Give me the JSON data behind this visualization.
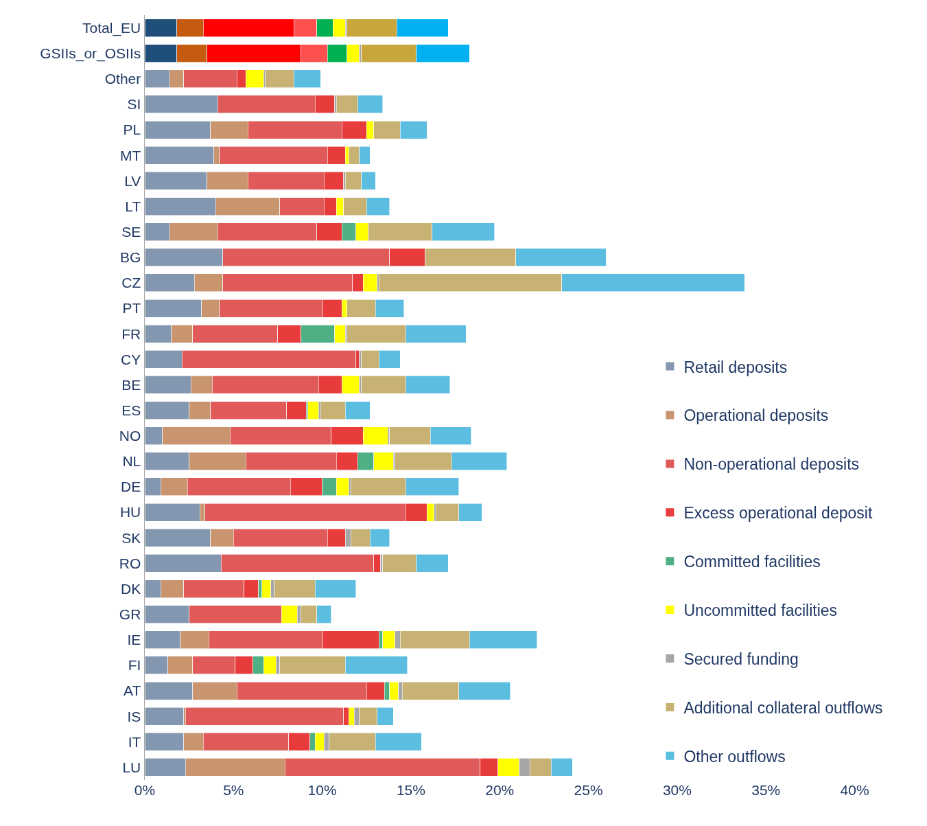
{
  "chart_data": {
    "type": "bar",
    "orientation": "horizontal",
    "stacked": true,
    "grid": false,
    "legend": "bottom right",
    "categories": [
      "Total_EU",
      "GSIIs_or_OSIIs",
      "Other",
      "SI",
      "PL",
      "MT",
      "LV",
      "LT",
      "SE",
      "BG",
      "CZ",
      "PT",
      "FR",
      "CY",
      "BE",
      "ES",
      "NO",
      "NL",
      "DE",
      "HU",
      "SK",
      "RO",
      "DK",
      "GR",
      "IE",
      "FI",
      "AT",
      "IS",
      "IT",
      "LU"
    ],
    "xlim": [
      0,
      44
    ],
    "xticks": [
      {
        "value": 0,
        "label": "0%"
      },
      {
        "value": 5,
        "label": "5%"
      },
      {
        "value": 10,
        "label": "10%"
      },
      {
        "value": 15,
        "label": "15%"
      },
      {
        "value": 20,
        "label": "20%"
      },
      {
        "value": 25,
        "label": "25%"
      },
      {
        "value": 30,
        "label": "30%"
      },
      {
        "value": 35,
        "label": "35%"
      },
      {
        "value": 40,
        "label": "40%"
      }
    ],
    "series": [
      {
        "name": "Retail deposits",
        "color": "#8497b0",
        "colors": [
          "#1f4e79",
          "#1f4e79",
          "#8497b0",
          "#8497b0",
          "#8497b0",
          "#8497b0",
          "#8497b0",
          "#8497b0",
          "#8497b0",
          "#8497b0",
          "#8497b0",
          "#8497b0",
          "#8497b0",
          "#8497b0",
          "#8497b0",
          "#8497b0",
          "#8497b0",
          "#8497b0",
          "#8497b0",
          "#8497b0",
          "#8497b0",
          "#8497b0",
          "#8497b0",
          "#8497b0",
          "#8497b0",
          "#8497b0",
          "#8497b0",
          "#8497b0",
          "#8497b0",
          "#8497b0"
        ],
        "values": [
          1.8,
          1.8,
          1.4,
          4.1,
          3.7,
          3.9,
          3.5,
          4.0,
          1.4,
          4.4,
          2.8,
          3.2,
          1.5,
          2.1,
          2.6,
          2.5,
          1.0,
          2.5,
          0.9,
          3.1,
          3.7,
          4.3,
          0.9,
          2.5,
          2.0,
          1.3,
          2.7,
          2.2,
          2.2,
          2.3
        ]
      },
      {
        "name": "Operational deposits",
        "color": "#c9956f",
        "colors": [
          "#c55a11",
          "#c55a11",
          "#c9956f",
          "#c9956f",
          "#c9956f",
          "#c9956f",
          "#c9956f",
          "#c9956f",
          "#c9956f",
          "#c9956f",
          "#c9956f",
          "#c9956f",
          "#c9956f",
          "#c9956f",
          "#c9956f",
          "#c9956f",
          "#c9956f",
          "#c9956f",
          "#c9956f",
          "#c9956f",
          "#c9956f",
          "#c9956f",
          "#c9956f",
          "#c9956f",
          "#c9956f",
          "#c9956f",
          "#c9956f",
          "#c9956f",
          "#c9956f",
          "#c9956f"
        ],
        "values": [
          1.5,
          1.7,
          0.8,
          0,
          2.1,
          0.3,
          2.3,
          3.6,
          2.7,
          0,
          1.6,
          1.0,
          1.2,
          0,
          1.2,
          1.2,
          3.8,
          3.2,
          1.5,
          0.3,
          1.3,
          0,
          1.3,
          0,
          1.6,
          1.4,
          2.5,
          0.1,
          1.1,
          5.6
        ]
      },
      {
        "name": "Non-operational deposits",
        "color": "#e05a5a",
        "colors": [
          "#ff0000",
          "#ff0000",
          "#e05a5a",
          "#e05a5a",
          "#e05a5a",
          "#e05a5a",
          "#e05a5a",
          "#e05a5a",
          "#e05a5a",
          "#e05a5a",
          "#e05a5a",
          "#e05a5a",
          "#e05a5a",
          "#e05a5a",
          "#e05a5a",
          "#e05a5a",
          "#e05a5a",
          "#e05a5a",
          "#e05a5a",
          "#e05a5a",
          "#e05a5a",
          "#e05a5a",
          "#e05a5a",
          "#e05a5a",
          "#e05a5a",
          "#e05a5a",
          "#e05a5a",
          "#e05a5a",
          "#e05a5a",
          "#e05a5a"
        ],
        "values": [
          5.1,
          5.3,
          3.0,
          5.5,
          5.3,
          6.1,
          4.3,
          2.5,
          5.6,
          9.4,
          7.3,
          5.8,
          4.8,
          9.8,
          6.0,
          4.3,
          5.7,
          5.1,
          5.8,
          11.3,
          5.3,
          8.6,
          3.4,
          5.2,
          6.4,
          2.4,
          7.3,
          8.9,
          4.8,
          11.0
        ]
      },
      {
        "name": "Excess operational deposit",
        "color": "#e83c3c",
        "colors": [
          "#ff5050",
          "#ff5050",
          "#e83c3c",
          "#e83c3c",
          "#e83c3c",
          "#e83c3c",
          "#e83c3c",
          "#e83c3c",
          "#e83c3c",
          "#e83c3c",
          "#e83c3c",
          "#e83c3c",
          "#e83c3c",
          "#e83c3c",
          "#e83c3c",
          "#e83c3c",
          "#e83c3c",
          "#e83c3c",
          "#e83c3c",
          "#e83c3c",
          "#e83c3c",
          "#e83c3c",
          "#e83c3c",
          "#e83c3c",
          "#e83c3c",
          "#e83c3c",
          "#e83c3c",
          "#e83c3c",
          "#e83c3c",
          "#e83c3c"
        ],
        "values": [
          1.3,
          1.5,
          0.5,
          1.1,
          1.4,
          1.0,
          1.1,
          0.7,
          1.4,
          2.0,
          0.6,
          1.1,
          1.3,
          0.2,
          1.3,
          1.1,
          1.8,
          1.2,
          1.8,
          1.2,
          1.0,
          0.4,
          0.8,
          0,
          3.2,
          1.0,
          1.0,
          0.3,
          1.2,
          1.0
        ]
      },
      {
        "name": "Committed facilities",
        "color": "#4fb083",
        "colors": [
          "#00b050",
          "#00b050",
          "#4fb083",
          "#4fb083",
          "#4fb083",
          "#4fb083",
          "#4fb083",
          "#4fb083",
          "#4fb083",
          "#4fb083",
          "#4fb083",
          "#4fb083",
          "#4fb083",
          "#4fb083",
          "#4fb083",
          "#4fb083",
          "#4fb083",
          "#4fb083",
          "#4fb083",
          "#4fb083",
          "#4fb083",
          "#4fb083",
          "#4fb083",
          "#4fb083",
          "#4fb083",
          "#4fb083",
          "#4fb083",
          "#4fb083",
          "#4fb083",
          "#4fb083"
        ],
        "values": [
          0.9,
          1.1,
          0,
          0,
          0,
          0,
          0,
          0,
          0.8,
          0,
          0,
          0,
          1.9,
          0,
          0,
          0.1,
          0,
          0.9,
          0.8,
          0,
          0,
          0,
          0.2,
          0,
          0.2,
          0.6,
          0.3,
          0,
          0.3,
          0
        ]
      },
      {
        "name": "Uncommitted facilities",
        "color": "#ffff00",
        "colors": [
          "#ffff00",
          "#ffff00",
          "#ffff00",
          "#ffff00",
          "#ffff00",
          "#ffff00",
          "#ffff00",
          "#ffff00",
          "#ffff00",
          "#ffff00",
          "#ffff00",
          "#ffff00",
          "#ffff00",
          "#ffff00",
          "#ffff00",
          "#ffff00",
          "#ffff00",
          "#ffff00",
          "#ffff00",
          "#ffff00",
          "#ffff00",
          "#ffff00",
          "#ffff00",
          "#ffff00",
          "#ffff00",
          "#ffff00",
          "#ffff00",
          "#ffff00",
          "#ffff00",
          "#ffff00"
        ],
        "values": [
          0.7,
          0.7,
          1.0,
          0,
          0.4,
          0.2,
          0,
          0.4,
          0.7,
          0,
          0.8,
          0.3,
          0.6,
          0,
          1.0,
          0.6,
          1.4,
          1.1,
          0.7,
          0.4,
          0,
          0,
          0.5,
          0.9,
          0.7,
          0.7,
          0.5,
          0.3,
          0.5,
          1.2
        ]
      },
      {
        "name": "Secured funding",
        "color": "#a6a6a6",
        "colors": [
          "#a6a6a6",
          "#a6a6a6",
          "#a6a6a6",
          "#a6a6a6",
          "#a6a6a6",
          "#a6a6a6",
          "#a6a6a6",
          "#a6a6a6",
          "#a6a6a6",
          "#a6a6a6",
          "#a6a6a6",
          "#a6a6a6",
          "#a6a6a6",
          "#a6a6a6",
          "#a6a6a6",
          "#a6a6a6",
          "#a6a6a6",
          "#a6a6a6",
          "#a6a6a6",
          "#a6a6a6",
          "#a6a6a6",
          "#a6a6a6",
          "#a6a6a6",
          "#a6a6a6",
          "#a6a6a6",
          "#a6a6a6",
          "#a6a6a6",
          "#a6a6a6",
          "#a6a6a6",
          "#a6a6a6"
        ],
        "values": [
          0.1,
          0.1,
          0.1,
          0.1,
          0,
          0,
          0.1,
          0,
          0,
          0,
          0.1,
          0,
          0.1,
          0.1,
          0.1,
          0.1,
          0.1,
          0.1,
          0.1,
          0.1,
          0.3,
          0.1,
          0.2,
          0.2,
          0.3,
          0.2,
          0.2,
          0.3,
          0.3,
          0.6
        ]
      },
      {
        "name": "Additional collateral outflows",
        "color": "#c8b273",
        "colors": [
          "#c9a63c",
          "#c9a63c",
          "#c8b273",
          "#c8b273",
          "#c8b273",
          "#c8b273",
          "#c8b273",
          "#c8b273",
          "#c8b273",
          "#c8b273",
          "#c8b273",
          "#c8b273",
          "#c8b273",
          "#c8b273",
          "#c8b273",
          "#c8b273",
          "#c8b273",
          "#c8b273",
          "#c8b273",
          "#c8b273",
          "#c8b273",
          "#c8b273",
          "#c8b273",
          "#c8b273",
          "#c8b273",
          "#c8b273",
          "#c8b273",
          "#c8b273",
          "#c8b273",
          "#c8b273"
        ],
        "values": [
          2.8,
          3.1,
          1.6,
          1.2,
          1.5,
          0.6,
          0.9,
          1.3,
          3.6,
          5.1,
          10.3,
          1.6,
          3.3,
          1.0,
          2.5,
          1.4,
          2.3,
          3.2,
          3.1,
          1.3,
          1.1,
          1.9,
          2.3,
          0.9,
          3.9,
          3.7,
          3.2,
          1.0,
          2.6,
          1.2
        ]
      },
      {
        "name": "Other outflows",
        "color": "#5bbde0",
        "colors": [
          "#00b0f0",
          "#00b0f0",
          "#5bbde0",
          "#5bbde0",
          "#5bbde0",
          "#5bbde0",
          "#5bbde0",
          "#5bbde0",
          "#5bbde0",
          "#5bbde0",
          "#5bbde0",
          "#5bbde0",
          "#5bbde0",
          "#5bbde0",
          "#5bbde0",
          "#5bbde0",
          "#5bbde0",
          "#5bbde0",
          "#5bbde0",
          "#5bbde0",
          "#5bbde0",
          "#5bbde0",
          "#5bbde0",
          "#5bbde0",
          "#5bbde0",
          "#5bbde0",
          "#5bbde0",
          "#5bbde0",
          "#5bbde0",
          "#5bbde0"
        ],
        "values": [
          2.9,
          3.0,
          1.5,
          1.4,
          1.5,
          0.6,
          0.8,
          1.3,
          3.5,
          5.1,
          10.3,
          1.6,
          3.4,
          1.2,
          2.5,
          1.4,
          2.3,
          3.1,
          3.0,
          1.3,
          1.1,
          1.8,
          2.3,
          0.8,
          3.8,
          3.5,
          2.9,
          0.9,
          2.6,
          1.2
        ]
      }
    ]
  }
}
